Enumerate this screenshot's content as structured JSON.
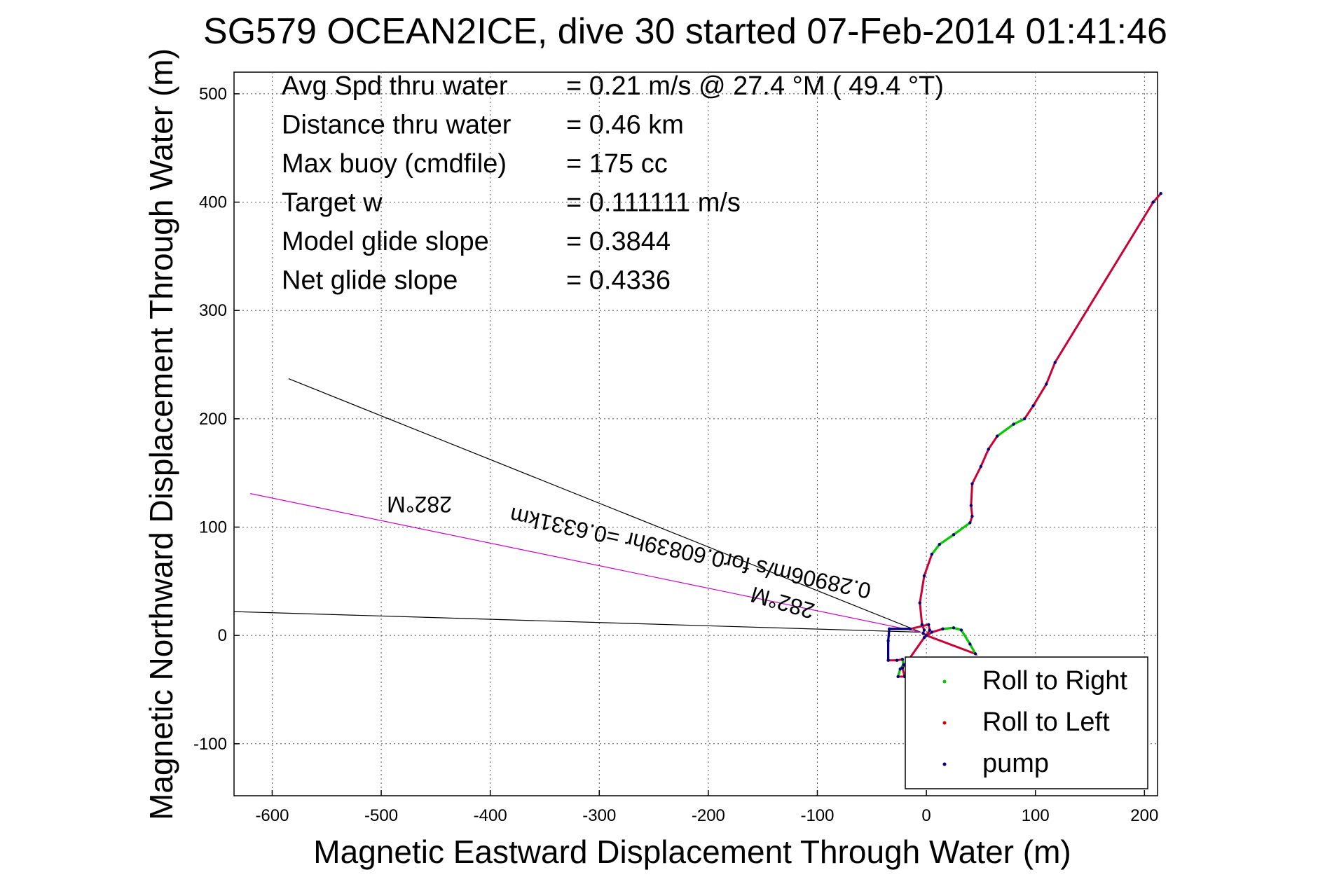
{
  "chart_data": {
    "type": "scatter",
    "title": "SG579 OCEAN2ICE, dive 30 started 07-Feb-2014 01:41:46",
    "xlabel": "Magnetic Eastward Displacement Through Water (m)",
    "ylabel": "Magnetic Northward Displacement Through Water (m)",
    "xlim": [
      -635,
      212
    ],
    "ylim": [
      -148,
      520
    ],
    "xticks": [
      -600,
      -500,
      -400,
      -300,
      -200,
      -100,
      0,
      100,
      200
    ],
    "yticks": [
      -100,
      0,
      100,
      200,
      300,
      400,
      500
    ],
    "grid": true,
    "legend_position": "bottom-right",
    "stats": [
      {
        "label": "Avg Spd thru water",
        "value": "=  0.21 m/s @  27.4 °M ( 49.4 °T)"
      },
      {
        "label": "Distance thru water",
        "value": "=  0.46 km"
      },
      {
        "label": "Max buoy (cmdfile)",
        "value": "= 175 cc"
      },
      {
        "label": "Target w",
        "value": "= 0.111111 m/s"
      },
      {
        "label": "Model glide slope",
        "value": "= 0.3844"
      },
      {
        "label": "Net glide slope",
        "value": "= 0.4336"
      }
    ],
    "series": [
      {
        "name": "Roll to Right",
        "color": "#00cc00",
        "marker": "point"
      },
      {
        "name": "Roll to Left",
        "color": "#cc0000",
        "marker": "point"
      },
      {
        "name": "pump",
        "color": "#000080",
        "marker": "point"
      }
    ],
    "track": {
      "color": "#cc0033",
      "points": [
        [
          0,
          0
        ],
        [
          3,
          5
        ],
        [
          2,
          10
        ],
        [
          -15,
          6
        ],
        [
          -34,
          6
        ],
        [
          -35,
          -5
        ],
        [
          -35,
          -23
        ],
        [
          -27,
          -23
        ],
        [
          -22,
          -22
        ],
        [
          -21,
          -27
        ],
        [
          -24,
          -31
        ],
        [
          -26,
          -38
        ],
        [
          -20,
          -38
        ],
        [
          -22,
          -30
        ],
        [
          -16,
          -22
        ],
        [
          -2,
          -2
        ],
        [
          5,
          3
        ],
        [
          15,
          6
        ],
        [
          25,
          7
        ],
        [
          32,
          5
        ],
        [
          40,
          -8
        ],
        [
          45,
          -17
        ],
        [
          0,
          0
        ],
        [
          -3,
          2
        ],
        [
          -2,
          5
        ],
        [
          -4,
          10
        ],
        [
          -6,
          30
        ],
        [
          -2,
          55
        ],
        [
          5,
          75
        ],
        [
          12,
          84
        ],
        [
          25,
          93
        ],
        [
          40,
          104
        ],
        [
          42,
          110
        ],
        [
          41,
          120
        ],
        [
          42,
          140
        ],
        [
          50,
          156
        ],
        [
          57,
          172
        ],
        [
          65,
          184
        ],
        [
          80,
          195
        ],
        [
          90,
          200
        ],
        [
          98,
          212
        ],
        [
          110,
          232
        ],
        [
          118,
          252
        ],
        [
          208,
          400
        ],
        [
          215,
          408
        ]
      ]
    },
    "segments": [
      {
        "color": "#00cc00",
        "points": [
          [
            5,
            75
          ],
          [
            12,
            84
          ],
          [
            25,
            93
          ],
          [
            40,
            104
          ]
        ]
      },
      {
        "color": "#00cc00",
        "points": [
          [
            65,
            184
          ],
          [
            80,
            195
          ],
          [
            90,
            200
          ]
        ]
      },
      {
        "color": "#00cc00",
        "points": [
          [
            15,
            6
          ],
          [
            25,
            7
          ],
          [
            32,
            5
          ],
          [
            40,
            -8
          ],
          [
            45,
            -17
          ]
        ]
      },
      {
        "color": "#00cc00",
        "points": [
          [
            -22,
            -22
          ],
          [
            -21,
            -27
          ],
          [
            -24,
            -31
          ],
          [
            -26,
            -38
          ]
        ]
      },
      {
        "color": "#000080",
        "points": [
          [
            -15,
            6
          ],
          [
            -34,
            6
          ],
          [
            -35,
            -5
          ],
          [
            -35,
            -23
          ]
        ]
      }
    ],
    "current_line": {
      "color": "#0000ee",
      "points": [
        [
          118,
          252
        ],
        [
          208,
          400
        ],
        [
          215,
          408
        ]
      ]
    },
    "heading_lines": [
      {
        "color": "#000000",
        "points": [
          [
            -585,
            237
          ],
          [
            -5,
            3
          ]
        ]
      },
      {
        "color": "#000000",
        "points": [
          [
            -635,
            22
          ],
          [
            -5,
            3
          ]
        ]
      },
      {
        "color": "#cc00cc",
        "points": [
          [
            -620,
            131
          ],
          [
            -5,
            3
          ]
        ]
      }
    ],
    "annotations": [
      {
        "text": "282°M",
        "at": [
          -465,
          128
        ],
        "rotation": 180
      },
      {
        "text": "0.28906m/s for0.60839hr =0.6331km",
        "at": [
          -215,
          83
        ],
        "rotation": 192
      },
      {
        "text": "282°M",
        "at": [
          -130,
          37
        ],
        "rotation": 196
      }
    ]
  }
}
